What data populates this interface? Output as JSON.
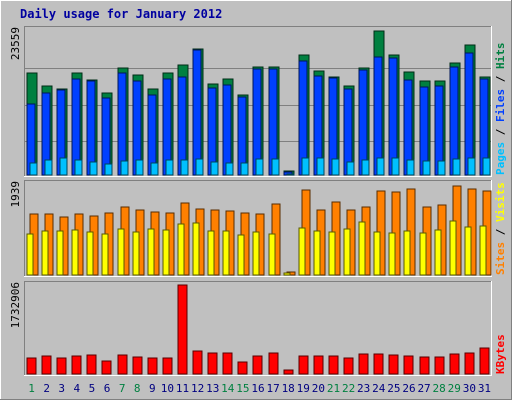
{
  "chart_data": [
    {
      "type": "bar",
      "title": "Daily usage for January 2012",
      "panel": "pages-files-hits",
      "ylabel_parts": [
        "Pages",
        "Files",
        "Hits"
      ],
      "ylabel_colors": [
        "#00c0ff",
        "#0040ff",
        "#008040"
      ],
      "ymax_label": "23559",
      "ymax": 23559,
      "categories": [
        "1",
        "2",
        "3",
        "4",
        "5",
        "6",
        "7",
        "8",
        "9",
        "10",
        "11",
        "12",
        "13",
        "14",
        "15",
        "16",
        "17",
        "18",
        "19",
        "20",
        "21",
        "22",
        "23",
        "24",
        "25",
        "26",
        "27",
        "28",
        "29",
        "30",
        "31"
      ],
      "series": [
        {
          "name": "Hits",
          "color": "#008040",
          "values": [
            16500,
            14500,
            14000,
            16500,
            15500,
            13400,
            17400,
            16300,
            13900,
            16500,
            17800,
            20400,
            14800,
            15600,
            13000,
            17600,
            17600,
            700,
            19500,
            16900,
            16000,
            14400,
            17400,
            23400,
            19500,
            16700,
            15300,
            15300,
            18200,
            21200,
            15900
          ]
        },
        {
          "name": "Files",
          "color": "#0040ff",
          "values": [
            11600,
            13300,
            13800,
            15600,
            15200,
            12500,
            16600,
            15300,
            13000,
            15600,
            15900,
            20300,
            14200,
            14700,
            12600,
            17200,
            17200,
            500,
            18600,
            16100,
            15800,
            14000,
            17000,
            19100,
            19000,
            15500,
            14300,
            14400,
            17500,
            19800,
            15600
          ]
        },
        {
          "name": "Pages",
          "color": "#00c0ff",
          "values": [
            1900,
            2400,
            2700,
            2400,
            2100,
            1800,
            2200,
            2400,
            2000,
            2400,
            2500,
            2600,
            2100,
            2000,
            1900,
            2600,
            2600,
            100,
            2800,
            2700,
            2600,
            2100,
            2500,
            2800,
            2800,
            2500,
            2200,
            2200,
            2600,
            2700,
            2800
          ]
        }
      ]
    },
    {
      "type": "bar",
      "panel": "sites-visits",
      "ylabel_parts": [
        "Sites",
        "Visits"
      ],
      "ylabel_colors": [
        "#ff8000",
        "#ffff00"
      ],
      "ymax_label": "1939",
      "ymax": 1939,
      "categories": [
        "1",
        "2",
        "3",
        "4",
        "5",
        "6",
        "7",
        "8",
        "9",
        "10",
        "11",
        "12",
        "13",
        "14",
        "15",
        "16",
        "17",
        "18",
        "19",
        "20",
        "21",
        "22",
        "23",
        "24",
        "25",
        "26",
        "27",
        "28",
        "29",
        "30",
        "31"
      ],
      "series": [
        {
          "name": "Sites",
          "color": "#ff8000",
          "values": [
            1290,
            1290,
            1240,
            1290,
            1250,
            1330,
            1440,
            1390,
            1340,
            1320,
            1530,
            1410,
            1390,
            1370,
            1330,
            1300,
            1520,
            70,
            1820,
            1390,
            1560,
            1390,
            1440,
            1780,
            1770,
            1830,
            1440,
            1490,
            1900,
            1840,
            1800
          ]
        },
        {
          "name": "Visits",
          "color": "#ffff00",
          "values": [
            870,
            940,
            930,
            960,
            910,
            880,
            980,
            920,
            970,
            960,
            1080,
            1110,
            930,
            930,
            850,
            910,
            880,
            40,
            1000,
            930,
            910,
            990,
            1120,
            920,
            900,
            930,
            900,
            950,
            1150,
            1030,
            1050
          ]
        }
      ]
    },
    {
      "type": "bar",
      "panel": "kbytes",
      "ylabel_parts": [
        "KBytes"
      ],
      "ylabel_colors": [
        "#ff0000"
      ],
      "ymax_label": "1732906",
      "ymax": 1732906,
      "categories": [
        "1",
        "2",
        "3",
        "4",
        "5",
        "6",
        "7",
        "8",
        "9",
        "10",
        "11",
        "12",
        "13",
        "14",
        "15",
        "16",
        "17",
        "18",
        "19",
        "20",
        "21",
        "22",
        "23",
        "24",
        "25",
        "26",
        "27",
        "28",
        "29",
        "30",
        "31"
      ],
      "series": [
        {
          "name": "KBytes",
          "color": "#ff0000",
          "values": [
            320000,
            351000,
            303000,
            360000,
            376000,
            254000,
            376000,
            329000,
            311000,
            320000,
            1732906,
            449000,
            413000,
            412000,
            238000,
            349000,
            401000,
            70000,
            353000,
            349000,
            342000,
            307000,
            398000,
            385000,
            371000,
            345000,
            330000,
            330000,
            387000,
            417000,
            509000
          ]
        }
      ]
    }
  ],
  "x_axis": {
    "labels": [
      "1",
      "2",
      "3",
      "4",
      "5",
      "6",
      "7",
      "8",
      "9",
      "10",
      "11",
      "12",
      "13",
      "14",
      "15",
      "16",
      "17",
      "18",
      "19",
      "20",
      "21",
      "22",
      "23",
      "24",
      "25",
      "26",
      "27",
      "28",
      "29",
      "30",
      "31"
    ],
    "weekend_days": [
      "1",
      "7",
      "8",
      "14",
      "15",
      "21",
      "22",
      "28",
      "29"
    ],
    "weekday_color": "#000080",
    "weekend_color": "#008040"
  },
  "colors": {
    "background": "#c0c0c0",
    "frame_light": "#ffffff",
    "frame_dark": "#808080",
    "title": "#0000a0",
    "gridline": "#808080"
  }
}
